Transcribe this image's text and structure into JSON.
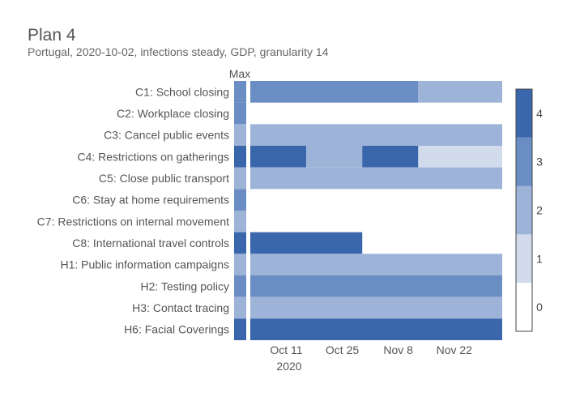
{
  "chart_data": {
    "type": "heatmap",
    "title": "Plan 4",
    "subtitle": "Portugal, 2020-10-02, infections steady, GDP, granularity 14",
    "max_label": "Max",
    "x_ticks": [
      {
        "label": "Oct 11",
        "day": 9
      },
      {
        "label": "Oct 25",
        "day": 23
      },
      {
        "label": "Nov 8",
        "day": 37
      },
      {
        "label": "Nov 22",
        "day": 51
      }
    ],
    "x_year": "2020",
    "x_range_days": [
      0,
      63
    ],
    "colorscale": {
      "range": [
        0,
        4
      ],
      "ticks": [
        "0",
        "1",
        "2",
        "3",
        "4"
      ],
      "colors": [
        "#ffffff",
        "#d1dbec",
        "#9db4d8",
        "#6a8ec3",
        "#3a66ac"
      ]
    },
    "rows": [
      {
        "label": "C1: School closing",
        "max": 3,
        "segments": [
          {
            "start": 0,
            "end": 42,
            "value": 3
          },
          {
            "start": 42,
            "end": 63,
            "value": 2
          }
        ]
      },
      {
        "label": "C2: Workplace closing",
        "max": 3,
        "segments": []
      },
      {
        "label": "C3: Cancel public events",
        "max": 2,
        "segments": [
          {
            "start": 0,
            "end": 63,
            "value": 2
          }
        ]
      },
      {
        "label": "C4: Restrictions on gatherings",
        "max": 4,
        "segments": [
          {
            "start": 0,
            "end": 14,
            "value": 4
          },
          {
            "start": 14,
            "end": 28,
            "value": 2
          },
          {
            "start": 28,
            "end": 42,
            "value": 4
          },
          {
            "start": 42,
            "end": 63,
            "value": 1
          }
        ]
      },
      {
        "label": "C5: Close public transport",
        "max": 2,
        "segments": [
          {
            "start": 0,
            "end": 63,
            "value": 2
          }
        ]
      },
      {
        "label": "C6: Stay at home requirements",
        "max": 3,
        "segments": []
      },
      {
        "label": "C7: Restrictions on internal movement",
        "max": 2,
        "segments": []
      },
      {
        "label": "C8: International travel controls",
        "max": 4,
        "segments": [
          {
            "start": 0,
            "end": 28,
            "value": 4
          }
        ]
      },
      {
        "label": "H1: Public information campaigns",
        "max": 2,
        "segments": [
          {
            "start": 0,
            "end": 63,
            "value": 2
          }
        ]
      },
      {
        "label": "H2: Testing policy",
        "max": 3,
        "segments": [
          {
            "start": 0,
            "end": 63,
            "value": 3
          }
        ]
      },
      {
        "label": "H3: Contact tracing",
        "max": 2,
        "segments": [
          {
            "start": 0,
            "end": 63,
            "value": 2
          }
        ]
      },
      {
        "label": "H6: Facial Coverings",
        "max": 4,
        "segments": [
          {
            "start": 0,
            "end": 63,
            "value": 4
          }
        ]
      }
    ]
  }
}
